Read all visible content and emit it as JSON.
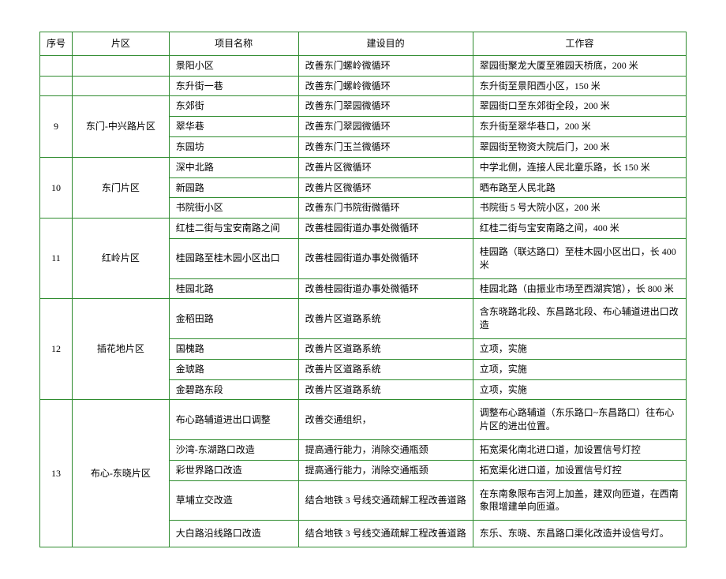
{
  "columns": [
    "序号",
    "片区",
    "项目名称",
    "建设目的",
    "工作容"
  ],
  "rows": [
    {
      "seq": "",
      "area": "",
      "proj": "景阳小区",
      "goal": "改善东门螺岭微循环",
      "work": "翠园街聚龙大厦至雅园天桥底，200 米"
    },
    {
      "seq": "",
      "area": "",
      "proj": "东升街一巷",
      "goal": "改善东门螺岭微循环",
      "work": "东升街至景阳西小区，150 米"
    },
    {
      "seq": "9",
      "area": "东门-中兴路片区",
      "proj": "东郊街",
      "goal": "改善东门翠园微循环",
      "work": "翠园街口至东郊街全段，200 米"
    },
    {
      "proj": "翠华巷",
      "goal": "改善东门翠园微循环",
      "work": "东升街至翠华巷口，200 米"
    },
    {
      "proj": "东园坊",
      "goal": "改善东门玉兰微循环",
      "work": "翠园街至物资大院后门，200 米"
    },
    {
      "seq": "10",
      "area": "东门片区",
      "proj": "深中北路",
      "goal": "改善片区微循环",
      "work": "中学北侧，连接人民北童乐路，长 150 米"
    },
    {
      "proj": "新园路",
      "goal": "改善片区微循环",
      "work": "晒布路至人民北路"
    },
    {
      "proj": "书院街小区",
      "goal": "改善东门书院街微循环",
      "work": "书院街 5 号大院小区，200 米"
    },
    {
      "seq": "11",
      "area": "红岭片区",
      "proj": "红桂二街与宝安南路之间",
      "goal": "改善桂园街道办事处微循环",
      "work": "红桂二街与宝安南路之间，400 米"
    },
    {
      "proj": "桂园路至桂木园小区出口",
      "goal": "改善桂园街道办事处微循环",
      "work": "桂园路（联达路口）至桂木园小区出口，长 400 米"
    },
    {
      "proj": "桂园北路",
      "goal": "改善桂园街道办事处微循环",
      "work": "桂园北路（由振业市场至西湖宾馆），长 800 米"
    },
    {
      "seq": "12",
      "area": "插花地片区",
      "proj": "金稻田路",
      "goal": "改善片区道路系统",
      "work": "含东晓路北段、东昌路北段、布心辅道进出口改造"
    },
    {
      "proj": "国槐路",
      "goal": "改善片区道路系统",
      "work": "立项，实施"
    },
    {
      "proj": "金琥路",
      "goal": "改善片区道路系统",
      "work": "立项，实施"
    },
    {
      "proj": "金碧路东段",
      "goal": "改善片区道路系统",
      "work": "立项，实施"
    },
    {
      "seq": "13",
      "area": "布心-东晓片区",
      "proj": "布心路辅道进出口调整",
      "goal": "改善交通组织，",
      "work": "调整布心路辅道（东乐路口~东昌路口）往布心片区的进出位置。"
    },
    {
      "proj": "沙湾-东湖路口改造",
      "goal": "提高通行能力，消除交通瓶颈",
      "work": "拓宽渠化南北进口道，加设置信号灯控"
    },
    {
      "proj": "彩世界路口改造",
      "goal": "提高通行能力，消除交通瓶颈",
      "work": "拓宽渠化进口道，加设置信号灯控"
    },
    {
      "proj": "草埔立交改造",
      "goal": "结合地铁 3 号线交通疏解工程改善道路",
      "work": "在东南象限布吉河上加盖，建双向匝道，在西南象限增建单向匝道。"
    },
    {
      "proj": "大白路沿线路口改造",
      "goal": "结合地铁 3 号线交通疏解工程改善道路",
      "work": "东乐、东晓、东昌路口渠化改造并设信号灯。"
    }
  ]
}
